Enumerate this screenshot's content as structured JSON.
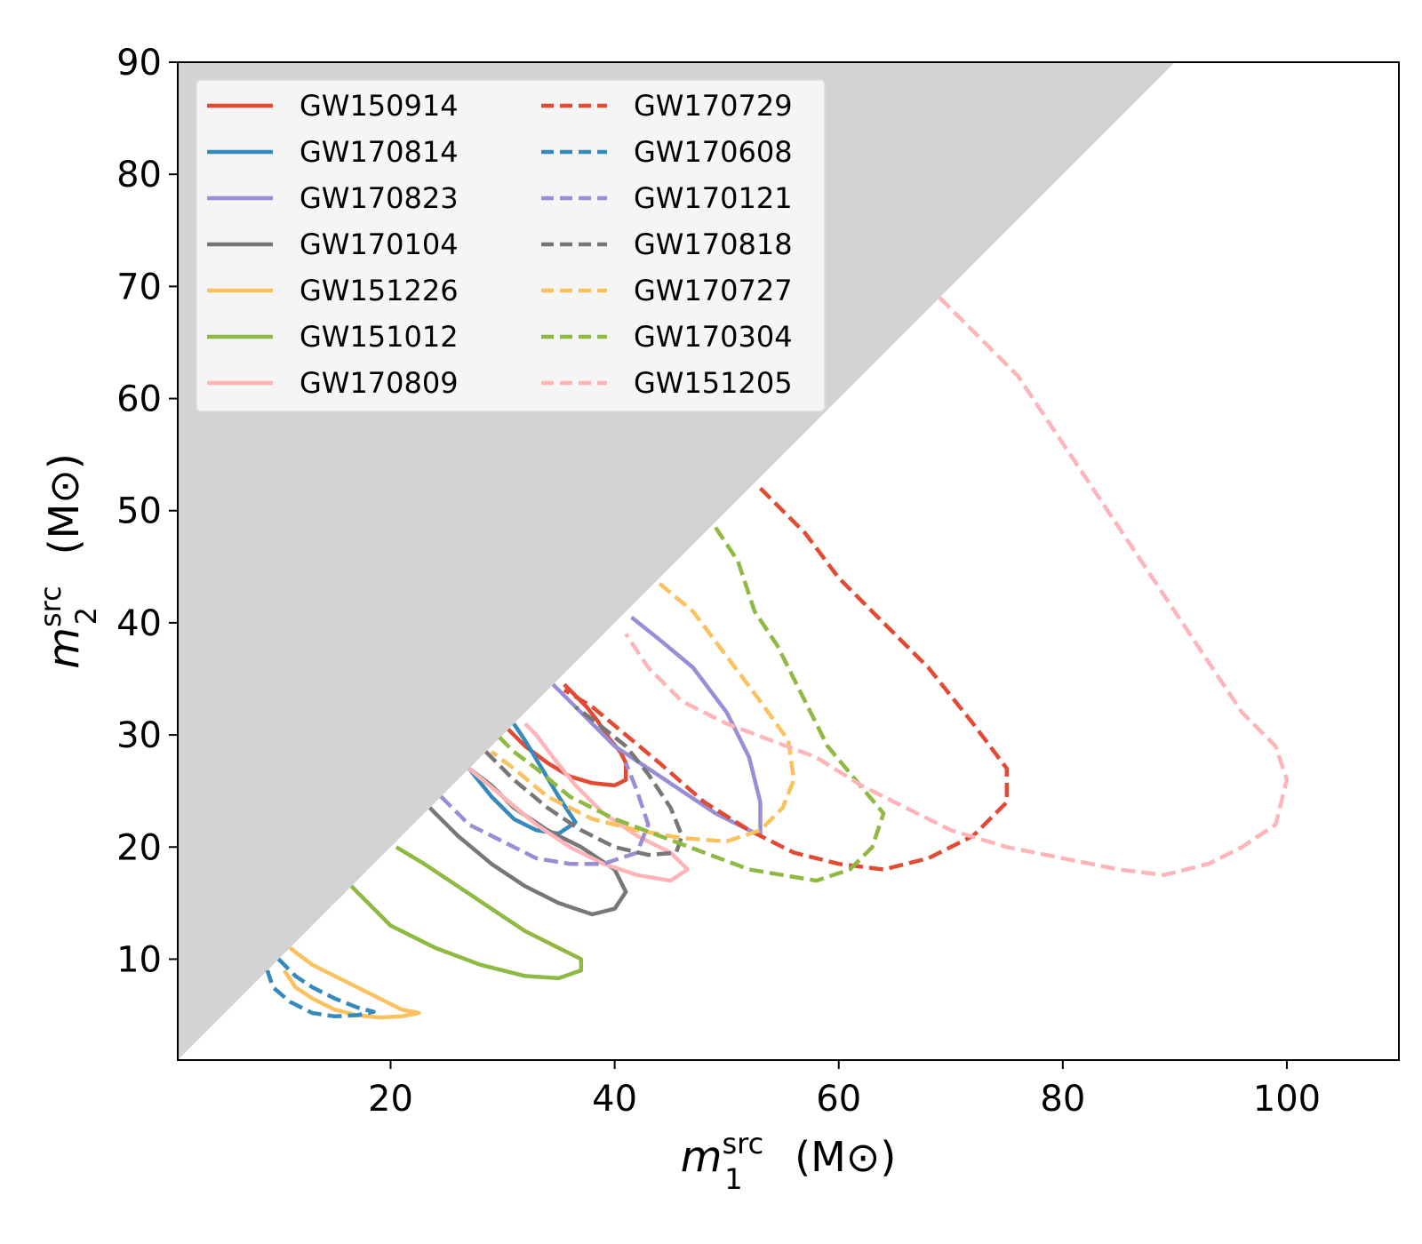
{
  "chart_data": {
    "type": "line",
    "title": "",
    "xlabel": {
      "symbol": "m",
      "sub": "1",
      "sup": "src",
      "unit": "(M⊙)"
    },
    "ylabel": {
      "symbol": "m",
      "sub": "2",
      "sup": "src",
      "unit": "(M⊙)"
    },
    "xlim": [
      1,
      110
    ],
    "ylim": [
      1,
      90
    ],
    "xticks": [
      20,
      40,
      60,
      80,
      100
    ],
    "yticks": [
      10,
      20,
      30,
      40,
      50,
      60,
      70,
      80,
      90
    ],
    "grid": false,
    "legend_position": "top-left",
    "excluded_region": {
      "description": "m2 > m1",
      "color": "#d3d3d3"
    },
    "series": [
      {
        "name": "GW150914",
        "color": "#e24a33",
        "dash": "solid",
        "points": [
          [
            30.5,
            30.5
          ],
          [
            32,
            29
          ],
          [
            34,
            27.5
          ],
          [
            36,
            26.3
          ],
          [
            38,
            25.7
          ],
          [
            40,
            25.5
          ],
          [
            41,
            26
          ],
          [
            41,
            27.5
          ],
          [
            40.5,
            28.5
          ],
          [
            39.5,
            29.7
          ],
          [
            38.5,
            31.2
          ],
          [
            37.5,
            32.5
          ],
          [
            36.5,
            33.5
          ],
          [
            35.5,
            34.5
          ]
        ]
      },
      {
        "name": "GW170814",
        "color": "#348abd",
        "dash": "solid",
        "points": [
          [
            27,
            27
          ],
          [
            29,
            24.5
          ],
          [
            31,
            22.5
          ],
          [
            33,
            21.5
          ],
          [
            35,
            21.2
          ],
          [
            36.5,
            22.2
          ],
          [
            35,
            24.5
          ],
          [
            33.5,
            27
          ],
          [
            32,
            29.5
          ],
          [
            31,
            31
          ]
        ]
      },
      {
        "name": "GW170823",
        "color": "#988ed5",
        "dash": "solid",
        "points": [
          [
            34.5,
            34.5
          ],
          [
            37,
            32
          ],
          [
            40,
            29
          ],
          [
            43,
            27
          ],
          [
            46,
            25
          ],
          [
            49,
            23
          ],
          [
            51,
            22
          ],
          [
            53,
            21
          ],
          [
            53,
            24
          ],
          [
            52,
            28
          ],
          [
            50,
            32
          ],
          [
            47,
            36
          ],
          [
            44,
            38.5
          ],
          [
            41.5,
            40.5
          ]
        ]
      },
      {
        "name": "GW170104",
        "color": "#777777",
        "dash": "solid",
        "points": [
          [
            23.5,
            23.5
          ],
          [
            26,
            21
          ],
          [
            29,
            18.5
          ],
          [
            32,
            16.5
          ],
          [
            35,
            15
          ],
          [
            38,
            14
          ],
          [
            40,
            14.5
          ],
          [
            41,
            16
          ],
          [
            40,
            18
          ],
          [
            37,
            20
          ],
          [
            34,
            21.5
          ],
          [
            31,
            23.5
          ],
          [
            29,
            25.5
          ],
          [
            27,
            27
          ]
        ]
      },
      {
        "name": "GW151226",
        "color": "#fbc15e",
        "dash": "solid",
        "points": [
          [
            11,
            11
          ],
          [
            13,
            9.5
          ],
          [
            15,
            8.5
          ],
          [
            17,
            7.5
          ],
          [
            19,
            6.5
          ],
          [
            21,
            5.5
          ],
          [
            22.5,
            5.2
          ],
          [
            21,
            4.9
          ],
          [
            19,
            4.8
          ],
          [
            17,
            5
          ],
          [
            15,
            5.5
          ],
          [
            13,
            6.5
          ],
          [
            11.5,
            7.5
          ],
          [
            10.5,
            9
          ]
        ]
      },
      {
        "name": "GW151012",
        "color": "#8eba42",
        "dash": "solid",
        "points": [
          [
            16.5,
            16.5
          ],
          [
            20,
            13
          ],
          [
            24,
            11
          ],
          [
            28,
            9.5
          ],
          [
            32,
            8.5
          ],
          [
            35,
            8.3
          ],
          [
            37,
            9
          ],
          [
            37,
            10
          ],
          [
            35,
            11
          ],
          [
            32,
            12.5
          ],
          [
            29,
            14.5
          ],
          [
            26,
            16.5
          ],
          [
            23,
            18.5
          ],
          [
            20.5,
            20
          ]
        ]
      },
      {
        "name": "GW170809",
        "color": "#ffb5b8",
        "dash": "solid",
        "points": [
          [
            27,
            27
          ],
          [
            30,
            24.5
          ],
          [
            33,
            22
          ],
          [
            36,
            20
          ],
          [
            39,
            18.5
          ],
          [
            42,
            17.5
          ],
          [
            45,
            17
          ],
          [
            46.5,
            18
          ],
          [
            45,
            19.5
          ],
          [
            42,
            21
          ],
          [
            39,
            23
          ],
          [
            36.5,
            25.5
          ],
          [
            34.5,
            28
          ],
          [
            33,
            30
          ],
          [
            32,
            31
          ]
        ]
      },
      {
        "name": "GW170729",
        "color": "#e24a33",
        "dash": "dashed",
        "points": [
          [
            53,
            52
          ],
          [
            57,
            48
          ],
          [
            60,
            44
          ],
          [
            64,
            40
          ],
          [
            68,
            36
          ],
          [
            72,
            31
          ],
          [
            75,
            27
          ],
          [
            75,
            24
          ],
          [
            72,
            21
          ],
          [
            68,
            19
          ],
          [
            64,
            18
          ],
          [
            60,
            18.5
          ],
          [
            56,
            19.5
          ],
          [
            52,
            21.5
          ],
          [
            48,
            24
          ],
          [
            44,
            27.5
          ],
          [
            41,
            30
          ],
          [
            38,
            32.5
          ],
          [
            35.5,
            34
          ]
        ]
      },
      {
        "name": "GW170608",
        "color": "#348abd",
        "dash": "dashed",
        "points": [
          [
            10,
            10
          ],
          [
            11.5,
            8.5
          ],
          [
            13,
            7.5
          ],
          [
            15,
            6.5
          ],
          [
            17,
            5.7
          ],
          [
            18.5,
            5.3
          ],
          [
            17,
            5
          ],
          [
            15,
            4.9
          ],
          [
            13,
            5.2
          ],
          [
            11,
            6.2
          ],
          [
            9.5,
            7.5
          ],
          [
            9,
            9
          ]
        ]
      },
      {
        "name": "GW170121",
        "color": "#988ed5",
        "dash": "dashed",
        "points": [
          [
            24.5,
            24.5
          ],
          [
            27,
            22
          ],
          [
            30,
            20.5
          ],
          [
            33,
            19
          ],
          [
            36,
            18.5
          ],
          [
            39,
            18.5
          ],
          [
            42,
            19.5
          ],
          [
            43,
            22
          ],
          [
            42,
            25
          ],
          [
            41,
            27.5
          ]
        ]
      },
      {
        "name": "GW170818",
        "color": "#777777",
        "dash": "dashed",
        "points": [
          [
            28.5,
            28.5
          ],
          [
            31,
            26
          ],
          [
            34,
            23.5
          ],
          [
            37,
            21.5
          ],
          [
            40,
            20
          ],
          [
            43,
            19.3
          ],
          [
            45.5,
            19.5
          ],
          [
            46,
            21
          ],
          [
            45,
            23.5
          ],
          [
            43,
            26.5
          ],
          [
            41,
            29
          ],
          [
            38.5,
            31
          ],
          [
            36.5,
            32.5
          ]
        ]
      },
      {
        "name": "GW170727",
        "color": "#fbc15e",
        "dash": "dashed",
        "points": [
          [
            44,
            43.5
          ],
          [
            47,
            41
          ],
          [
            50,
            37
          ],
          [
            53,
            33
          ],
          [
            55.5,
            29.5
          ],
          [
            56,
            26
          ],
          [
            55,
            23.5
          ],
          [
            53,
            21.5
          ],
          [
            50,
            20.5
          ],
          [
            46,
            20.8
          ],
          [
            42,
            21.5
          ],
          [
            38,
            22.5
          ],
          [
            34,
            24.5
          ],
          [
            31,
            27
          ],
          [
            29,
            28.5
          ]
        ]
      },
      {
        "name": "GW170304",
        "color": "#8eba42",
        "dash": "dashed",
        "points": [
          [
            49,
            48.5
          ],
          [
            51,
            45.5
          ],
          [
            52.5,
            41
          ],
          [
            54.5,
            38
          ],
          [
            57,
            33
          ],
          [
            59,
            29
          ],
          [
            61.5,
            26
          ],
          [
            64,
            23
          ],
          [
            63,
            20
          ],
          [
            61,
            18
          ],
          [
            58,
            17
          ],
          [
            55,
            17.5
          ],
          [
            52,
            18
          ],
          [
            48,
            19.5
          ],
          [
            44,
            21
          ],
          [
            40,
            22.5
          ],
          [
            36,
            24.5
          ],
          [
            33,
            27
          ],
          [
            31,
            28.5
          ],
          [
            29.5,
            30
          ]
        ]
      },
      {
        "name": "GW151205",
        "color": "#ffb5b8",
        "dash": "dashed",
        "points": [
          [
            69,
            69
          ],
          [
            72,
            66
          ],
          [
            76,
            62
          ],
          [
            80,
            56
          ],
          [
            84,
            50
          ],
          [
            88,
            44
          ],
          [
            92,
            38
          ],
          [
            96,
            32
          ],
          [
            99,
            29
          ],
          [
            100,
            26
          ],
          [
            99,
            22
          ],
          [
            96,
            20
          ],
          [
            93,
            18.5
          ],
          [
            89,
            17.5
          ],
          [
            85,
            18
          ],
          [
            80,
            19
          ],
          [
            75,
            20
          ],
          [
            70,
            21.5
          ],
          [
            66,
            23.5
          ],
          [
            62,
            25.5
          ],
          [
            58,
            28
          ],
          [
            54,
            29.5
          ],
          [
            50,
            31
          ],
          [
            46,
            33
          ],
          [
            43,
            36
          ],
          [
            41,
            39
          ]
        ]
      }
    ]
  }
}
